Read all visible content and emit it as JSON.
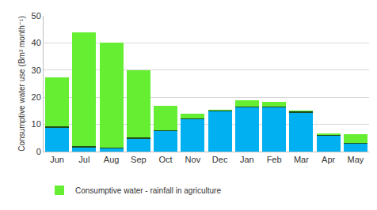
{
  "chart_data": {
    "type": "bar",
    "stacked": true,
    "y_label": "Consumptive water use (Bm³ month⁻¹)",
    "categories": [
      "Jun",
      "Jul",
      "Aug",
      "Sep",
      "Oct",
      "Nov",
      "Dec",
      "Jan",
      "Feb",
      "Mar",
      "Apr",
      "May"
    ],
    "series": [
      {
        "color": "#00b0f0",
        "values": [
          8.8,
          1.5,
          1.2,
          4.7,
          7.5,
          12,
          14.7,
          16.2,
          16.2,
          14.3,
          5.8,
          2.8
        ]
      },
      {
        "color": "#1e4d1e",
        "values": [
          0.4,
          0.4,
          0.4,
          0.4,
          0.4,
          0.3,
          0.3,
          0.3,
          0.3,
          0.5,
          0.3,
          0.3
        ]
      },
      {
        "name": "Consumptive water - rainfall in agriculture",
        "color": "#66ee33",
        "values": [
          18.1,
          42.1,
          38.4,
          24.9,
          9.1,
          1.7,
          0.3,
          2.5,
          1.7,
          0.4,
          0.7,
          3.2
        ]
      }
    ],
    "ylim": [
      0,
      50
    ],
    "yticks": [
      0,
      10,
      20,
      30,
      40,
      50
    ],
    "grid": true,
    "legend": "bottom"
  }
}
